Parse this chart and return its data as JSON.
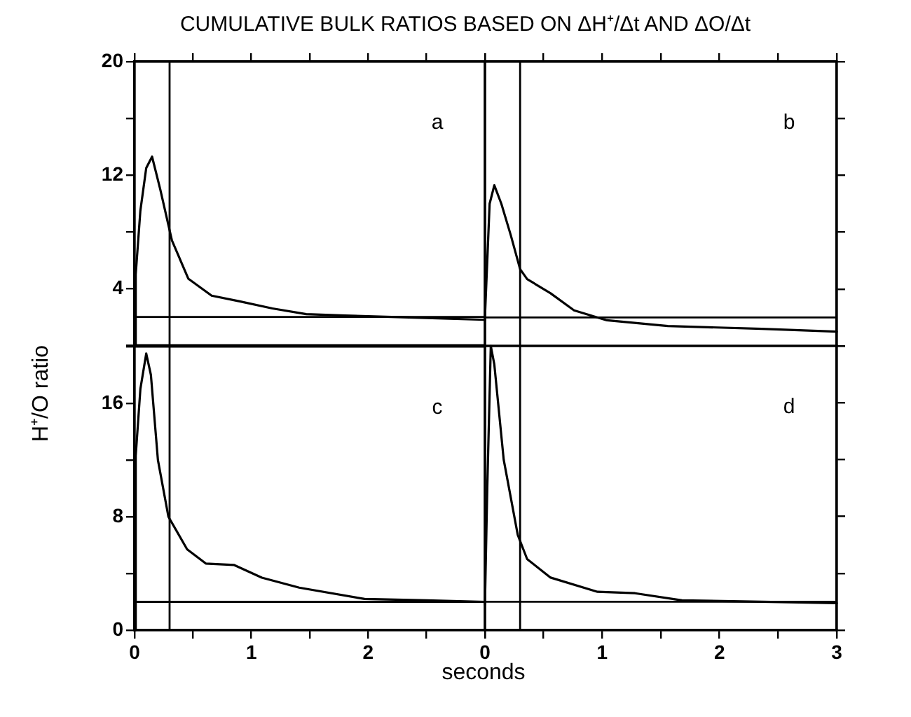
{
  "chart_data": [
    {
      "type": "line",
      "title": "CUMULATIVE BULK RATIOS BASED ON ΔH⁺/Δt AND ΔO/Δt",
      "annotations": [
        "a"
      ],
      "tick_labels": "y",
      "xlim": [
        0,
        3
      ],
      "ylim": [
        0,
        20
      ],
      "xticks": [
        0,
        {
          "value": 0.5,
          "label": null
        },
        1,
        {
          "value": 1.5,
          "label": null
        },
        2,
        {
          "value": 2.5,
          "label": null
        },
        3
      ],
      "yticks": [
        {
          "value": 0,
          "label": null
        },
        4,
        {
          "value": 8,
          "label": null
        },
        12,
        {
          "value": 16,
          "label": null
        },
        20
      ],
      "ref_lines": [
        {
          "axis": "y",
          "value": 2,
          "color": "#000000"
        },
        {
          "axis": "x",
          "value": 0.3,
          "color": "#000000"
        }
      ],
      "series": [
        {
          "color": "#000000",
          "x": [
            0,
            0.01,
            0.05,
            0.1,
            0.15,
            0.22,
            0.32,
            0.46,
            0.66,
            0.9,
            1.18,
            1.47,
            1.8,
            2.2,
            2.6,
            3
          ],
          "values": [
            0,
            5,
            9.5,
            12.5,
            13.3,
            11,
            7.4,
            4.7,
            3.5,
            3.1,
            2.6,
            2.2,
            2.1,
            2,
            1.9,
            1.8
          ]
        }
      ]
    },
    {
      "type": "line",
      "annotations": [
        "b"
      ],
      "tick_labels": false,
      "xlim": [
        0,
        3
      ],
      "ylim": [
        0,
        20
      ],
      "xticks": [
        0,
        {
          "value": 0.5,
          "label": null
        },
        1,
        {
          "value": 1.5,
          "label": null
        },
        2,
        {
          "value": 2.5,
          "label": null
        },
        3
      ],
      "yticks": [
        {
          "value": 0,
          "label": null
        },
        4,
        {
          "value": 8,
          "label": null
        },
        12,
        {
          "value": 16,
          "label": null
        },
        20
      ],
      "ref_lines": [
        {
          "axis": "y",
          "value": 2,
          "color": "#000000"
        },
        {
          "axis": "x",
          "value": 0.3,
          "color": "#000000"
        }
      ],
      "series": [
        {
          "color": "#000000",
          "x": [
            0,
            0.02,
            0.04,
            0.08,
            0.14,
            0.22,
            0.3,
            0.36,
            0.56,
            0.76,
            1.04,
            1.56,
            2.36,
            3
          ],
          "values": [
            2,
            6,
            10,
            11.3,
            10,
            7.8,
            5.4,
            4.7,
            3.7,
            2.5,
            1.8,
            1.4,
            1.2,
            1
          ]
        }
      ]
    },
    {
      "type": "line",
      "xlabel": "seconds",
      "ylabel": "H⁺/O ratio",
      "annotations": [
        "c"
      ],
      "xlim": [
        0,
        3
      ],
      "ylim": [
        0,
        20
      ],
      "xticks": [
        0,
        {
          "value": 0.5,
          "label": null
        },
        1,
        {
          "value": 1.5,
          "label": null
        },
        2,
        {
          "value": 2.5,
          "label": null
        },
        {
          "value": 3,
          "label": null
        }
      ],
      "yticks": [
        0,
        {
          "value": 4,
          "label": null
        },
        8,
        {
          "value": 12,
          "label": null
        },
        16,
        {
          "value": 20,
          "label": null
        }
      ],
      "ref_lines": [
        {
          "axis": "y",
          "value": 2,
          "color": "#000000"
        },
        {
          "axis": "x",
          "value": 0.3,
          "color": "#000000"
        }
      ],
      "series": [
        {
          "color": "#000000",
          "x": [
            0,
            0.01,
            0.05,
            0.1,
            0.14,
            0.2,
            0.29,
            0.45,
            0.61,
            0.85,
            1.09,
            1.41,
            1.97,
            2.5,
            3
          ],
          "values": [
            0,
            12.3,
            17,
            19.5,
            18,
            12,
            8,
            5.7,
            4.7,
            4.6,
            3.7,
            3,
            2.2,
            2.1,
            2
          ]
        }
      ]
    },
    {
      "type": "line",
      "annotations": [
        "d"
      ],
      "tick_labels": "x",
      "xlim": [
        0,
        3
      ],
      "ylim": [
        0,
        20
      ],
      "xticks": [
        0,
        {
          "value": 0.5,
          "label": null
        },
        1,
        {
          "value": 1.5,
          "label": null
        },
        2,
        {
          "value": 2.5,
          "label": null
        },
        3
      ],
      "yticks": [
        0,
        {
          "value": 4,
          "label": null
        },
        8,
        {
          "value": 12,
          "label": null
        },
        16,
        {
          "value": 20,
          "label": null
        }
      ],
      "ref_lines": [
        {
          "axis": "y",
          "value": 2,
          "color": "#000000"
        },
        {
          "axis": "x",
          "value": 0.3,
          "color": "#000000"
        }
      ],
      "series": [
        {
          "color": "#000000",
          "x": [
            0,
            0.02,
            0.05,
            0.08,
            0.16,
            0.28,
            0.36,
            0.56,
            0.96,
            1.28,
            1.68,
            2.36,
            3
          ],
          "values": [
            1.8,
            10,
            20,
            18.7,
            12,
            6.7,
            5,
            3.7,
            2.7,
            2.6,
            2.1,
            2,
            1.9
          ]
        }
      ]
    }
  ]
}
